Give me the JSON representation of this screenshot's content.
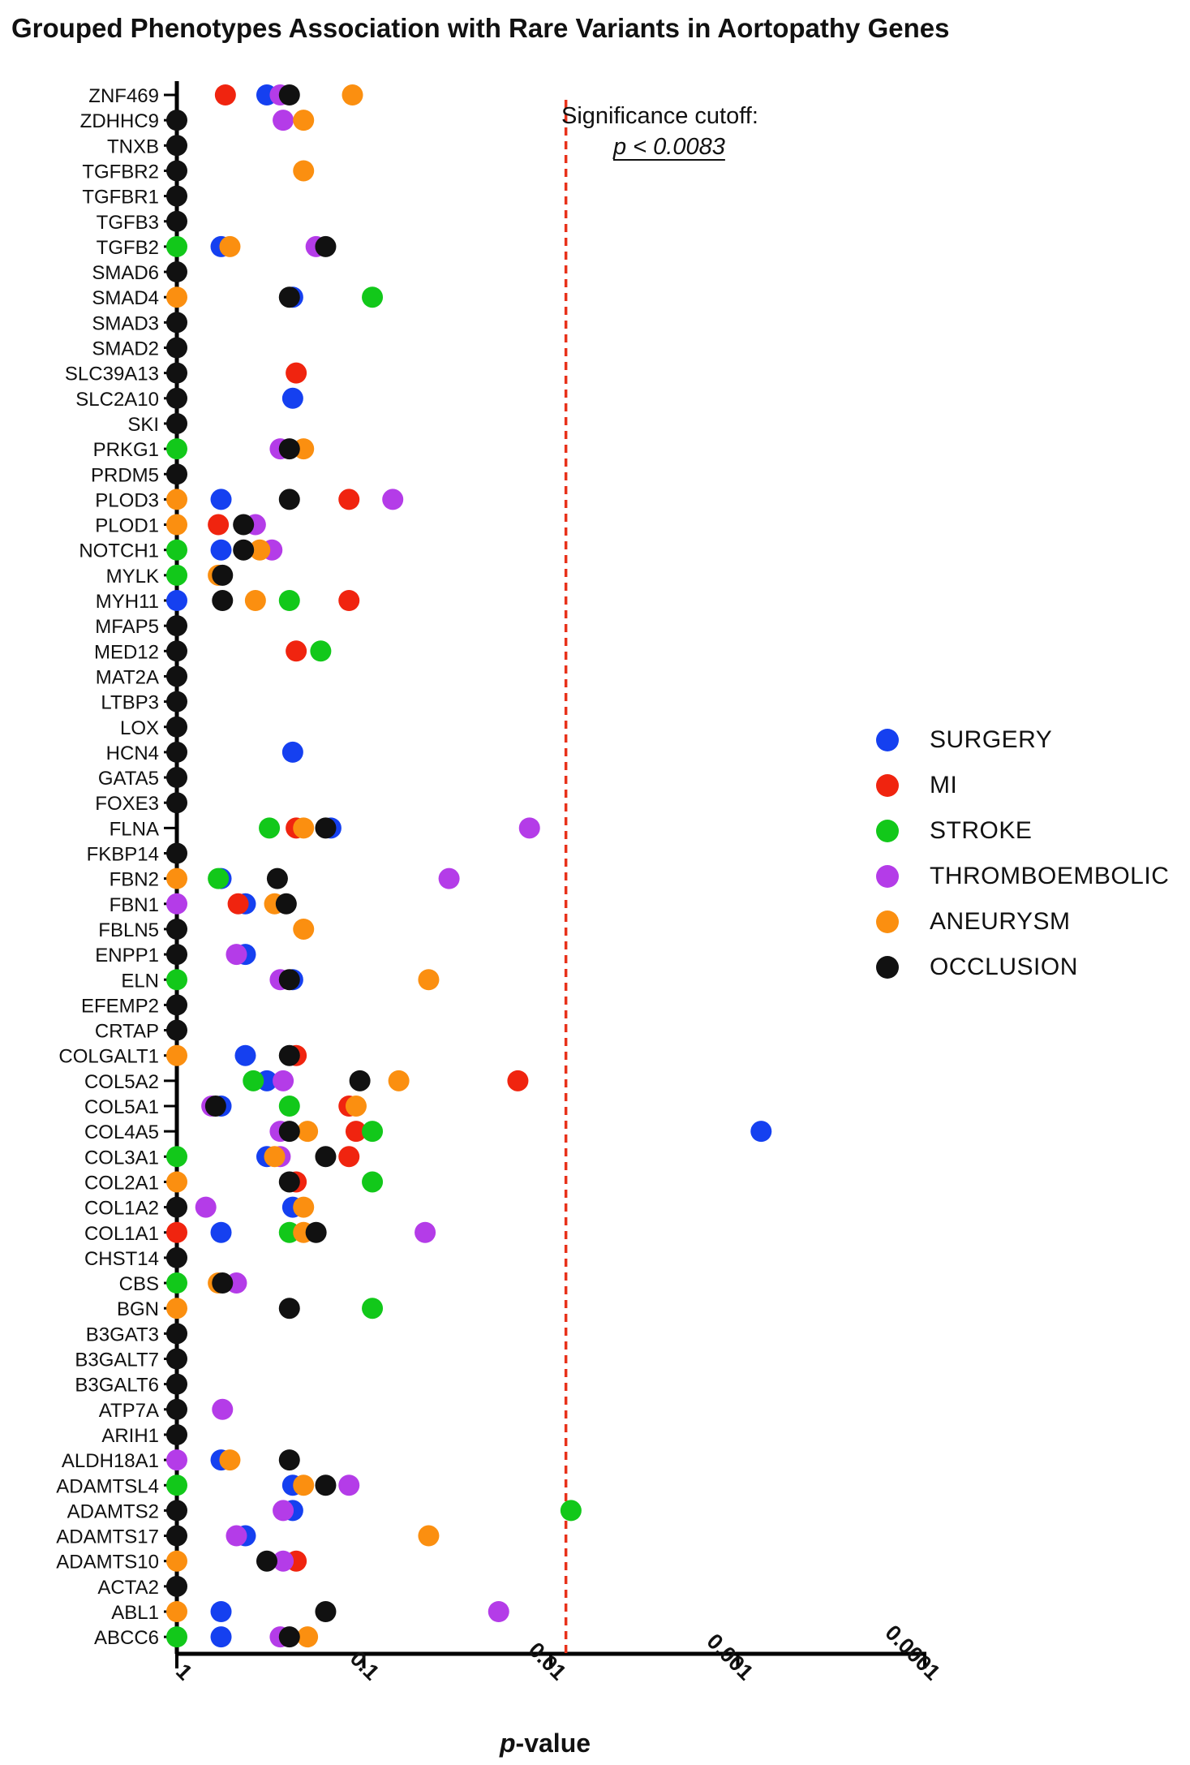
{
  "chart_data": {
    "type": "scatter",
    "title": "Grouped Phenotypes Association with Rare Variants in Aortopathy Genes",
    "xlabel_italic": "p",
    "xlabel_rest": "-value",
    "xscale": "log-reversed",
    "xlim": [
      1,
      0.0001
    ],
    "xticks": [
      "1",
      "0.1",
      "0.01",
      "0.001",
      "0.0001"
    ],
    "grid": false,
    "legend_position": "right",
    "cutoff": {
      "value": 0.0083,
      "label": "Significance cutoff:",
      "value_label": "p < 0.0083",
      "color": "#e8311a"
    },
    "genes": [
      "ZNF469",
      "ZDHHC9",
      "TNXB",
      "TGFBR2",
      "TGFBR1",
      "TGFB3",
      "TGFB2",
      "SMAD6",
      "SMAD4",
      "SMAD3",
      "SMAD2",
      "SLC39A13",
      "SLC2A10",
      "SKI",
      "PRKG1",
      "PRDM5",
      "PLOD3",
      "PLOD1",
      "NOTCH1",
      "MYLK",
      "MYH11",
      "MFAP5",
      "MED12",
      "MAT2A",
      "LTBP3",
      "LOX",
      "HCN4",
      "GATA5",
      "FOXE3",
      "FLNA",
      "FKBP14",
      "FBN2",
      "FBN1",
      "FBLN5",
      "ENPP1",
      "ELN",
      "EFEMP2",
      "CRTAP",
      "COLGALT1",
      "COL5A2",
      "COL5A1",
      "COL4A5",
      "COL3A1",
      "COL2A1",
      "COL1A2",
      "COL1A1",
      "CHST14",
      "CBS",
      "BGN",
      "B3GAT3",
      "B3GALT7",
      "B3GALT6",
      "ATP7A",
      "ARIH1",
      "ALDH18A1",
      "ADAMTSL4",
      "ADAMTS2",
      "ADAMTS17",
      "ADAMTS10",
      "ACTA2",
      "ABL1",
      "ABCC6"
    ],
    "series": [
      {
        "name": "SURGERY",
        "color": "#1540f0",
        "points": [
          [
            "ZNF469",
            0.33
          ],
          [
            "TGFB2",
            0.58
          ],
          [
            "SMAD4",
            0.24
          ],
          [
            "SLC2A10",
            0.24
          ],
          [
            "PLOD3",
            0.58
          ],
          [
            "NOTCH1",
            0.58
          ],
          [
            "MYH11",
            1
          ],
          [
            "HCN4",
            0.24
          ],
          [
            "FLNA",
            0.15
          ],
          [
            "FBN2",
            0.58
          ],
          [
            "FBN1",
            0.43
          ],
          [
            "ENPP1",
            0.43
          ],
          [
            "ELN",
            0.24
          ],
          [
            "COLGALT1",
            0.43
          ],
          [
            "COL5A2",
            0.33
          ],
          [
            "COL5A1",
            0.58
          ],
          [
            "COL4A5",
            0.00075
          ],
          [
            "COL3A1",
            0.33
          ],
          [
            "COL1A2",
            0.24
          ],
          [
            "COL1A1",
            0.58
          ],
          [
            "ALDH18A1",
            0.58
          ],
          [
            "ADAMTSL4",
            0.24
          ],
          [
            "ADAMTS2",
            0.24
          ],
          [
            "ADAMTS17",
            0.43
          ],
          [
            "ABL1",
            0.58
          ],
          [
            "ABCC6",
            0.58
          ]
        ]
      },
      {
        "name": "MI",
        "color": "#f0240f",
        "points": [
          [
            "ZNF469",
            0.55
          ],
          [
            "SLC39A13",
            0.23
          ],
          [
            "PLOD3",
            0.12
          ],
          [
            "PLOD1",
            0.6
          ],
          [
            "MYH11",
            0.12
          ],
          [
            "MED12",
            0.23
          ],
          [
            "FLNA",
            0.23
          ],
          [
            "FBN1",
            0.47
          ],
          [
            "COLGALT1",
            0.23
          ],
          [
            "COL5A2",
            0.015
          ],
          [
            "COL5A1",
            0.12
          ],
          [
            "COL4A5",
            0.11
          ],
          [
            "COL3A1",
            0.12
          ],
          [
            "COL2A1",
            0.23
          ],
          [
            "COL1A1",
            1
          ],
          [
            "ADAMTS10",
            0.23
          ]
        ]
      },
      {
        "name": "STROKE",
        "color": "#12c81a",
        "points": [
          [
            "TGFB2",
            1
          ],
          [
            "SMAD4",
            0.09
          ],
          [
            "PRKG1",
            1
          ],
          [
            "NOTCH1",
            1
          ],
          [
            "MYLK",
            1
          ],
          [
            "MYH11",
            0.25
          ],
          [
            "MED12",
            0.17
          ],
          [
            "FLNA",
            0.32
          ],
          [
            "FBN2",
            0.6
          ],
          [
            "ELN",
            1
          ],
          [
            "COL5A2",
            0.39
          ],
          [
            "COL5A1",
            0.25
          ],
          [
            "COL4A5",
            0.09
          ],
          [
            "COL3A1",
            1
          ],
          [
            "COL2A1",
            0.09
          ],
          [
            "COL1A1",
            0.25
          ],
          [
            "CBS",
            1
          ],
          [
            "BGN",
            0.09
          ],
          [
            "ADAMTSL4",
            1
          ],
          [
            "ADAMTS2",
            0.0078
          ],
          [
            "ABCC6",
            1
          ]
        ]
      },
      {
        "name": "THROMBOEMBOLIC",
        "color": "#b43ce8",
        "points": [
          [
            "ZNF469",
            0.28
          ],
          [
            "ZDHHC9",
            0.27
          ],
          [
            "TGFB2",
            0.18
          ],
          [
            "PRKG1",
            0.28
          ],
          [
            "PLOD3",
            0.07
          ],
          [
            "PLOD1",
            0.38
          ],
          [
            "NOTCH1",
            0.31
          ],
          [
            "FLNA",
            0.013
          ],
          [
            "FBN2",
            0.035
          ],
          [
            "FBN1",
            1
          ],
          [
            "ENPP1",
            0.48
          ],
          [
            "ELN",
            0.28
          ],
          [
            "COL5A2",
            0.27
          ],
          [
            "COL5A1",
            0.65
          ],
          [
            "COL4A5",
            0.28
          ],
          [
            "COL3A1",
            0.28
          ],
          [
            "COL1A2",
            0.7
          ],
          [
            "COL1A1",
            0.047
          ],
          [
            "CBS",
            0.48
          ],
          [
            "ATP7A",
            0.57
          ],
          [
            "ALDH18A1",
            1
          ],
          [
            "ADAMTSL4",
            0.12
          ],
          [
            "ADAMTS2",
            0.27
          ],
          [
            "ADAMTS17",
            0.48
          ],
          [
            "ADAMTS10",
            0.27
          ],
          [
            "ABL1",
            0.019
          ],
          [
            "ABCC6",
            0.28
          ]
        ]
      },
      {
        "name": "ANEURYSM",
        "color": "#fb8f10",
        "points": [
          [
            "ZNF469",
            0.115
          ],
          [
            "ZDHHC9",
            0.21
          ],
          [
            "TGFBR2",
            0.21
          ],
          [
            "TGFB2",
            0.52
          ],
          [
            "SMAD4",
            1
          ],
          [
            "PRKG1",
            0.21
          ],
          [
            "PLOD3",
            1
          ],
          [
            "PLOD1",
            1
          ],
          [
            "NOTCH1",
            0.36
          ],
          [
            "MYLK",
            0.6
          ],
          [
            "MYH11",
            0.38
          ],
          [
            "FLNA",
            0.21
          ],
          [
            "FBN2",
            1
          ],
          [
            "FBN1",
            0.3
          ],
          [
            "FBLN5",
            0.21
          ],
          [
            "ELN",
            0.045
          ],
          [
            "COLGALT1",
            1
          ],
          [
            "COL5A2",
            0.065
          ],
          [
            "COL5A1",
            0.11
          ],
          [
            "COL4A5",
            0.2
          ],
          [
            "COL3A1",
            0.3
          ],
          [
            "COL2A1",
            1
          ],
          [
            "COL1A2",
            0.21
          ],
          [
            "COL1A1",
            0.21
          ],
          [
            "CBS",
            0.6
          ],
          [
            "BGN",
            1
          ],
          [
            "ALDH18A1",
            0.52
          ],
          [
            "ADAMTSL4",
            0.21
          ],
          [
            "ADAMTS17",
            0.045
          ],
          [
            "ADAMTS10",
            1
          ],
          [
            "ABL1",
            1
          ],
          [
            "ABCC6",
            0.2
          ]
        ]
      },
      {
        "name": "OCCLUSION",
        "color": "#111111",
        "points": [
          [
            "ZNF469",
            0.25
          ],
          [
            "ZDHHC9",
            1
          ],
          [
            "TNXB",
            1
          ],
          [
            "TGFBR2",
            1
          ],
          [
            "TGFBR1",
            1
          ],
          [
            "TGFB3",
            1
          ],
          [
            "TGFB2",
            0.16
          ],
          [
            "SMAD6",
            1
          ],
          [
            "SMAD4",
            0.25
          ],
          [
            "SMAD3",
            1
          ],
          [
            "SMAD2",
            1
          ],
          [
            "SLC39A13",
            1
          ],
          [
            "SLC2A10",
            1
          ],
          [
            "SKI",
            1
          ],
          [
            "PRKG1",
            0.25
          ],
          [
            "PRDM5",
            1
          ],
          [
            "PLOD3",
            0.25
          ],
          [
            "PLOD1",
            0.44
          ],
          [
            "NOTCH1",
            0.44
          ],
          [
            "MYLK",
            0.57
          ],
          [
            "MYH11",
            0.57
          ],
          [
            "MFAP5",
            1
          ],
          [
            "MED12",
            1
          ],
          [
            "MAT2A",
            1
          ],
          [
            "LTBP3",
            1
          ],
          [
            "LOX",
            1
          ],
          [
            "HCN4",
            1
          ],
          [
            "GATA5",
            1
          ],
          [
            "FOXE3",
            1
          ],
          [
            "FLNA",
            0.16
          ],
          [
            "FKBP14",
            1
          ],
          [
            "FBN2",
            0.29
          ],
          [
            "FBN1",
            0.26
          ],
          [
            "FBLN5",
            1
          ],
          [
            "ENPP1",
            1
          ],
          [
            "ELN",
            0.25
          ],
          [
            "EFEMP2",
            1
          ],
          [
            "CRTAP",
            1
          ],
          [
            "COLGALT1",
            0.25
          ],
          [
            "COL5A2",
            0.105
          ],
          [
            "COL5A1",
            0.62
          ],
          [
            "COL4A5",
            0.25
          ],
          [
            "COL3A1",
            0.16
          ],
          [
            "COL2A1",
            0.25
          ],
          [
            "COL1A2",
            1
          ],
          [
            "COL1A1",
            0.18
          ],
          [
            "CHST14",
            1
          ],
          [
            "CBS",
            0.57
          ],
          [
            "BGN",
            0.25
          ],
          [
            "B3GAT3",
            1
          ],
          [
            "B3GALT7",
            1
          ],
          [
            "B3GALT6",
            1
          ],
          [
            "ATP7A",
            1
          ],
          [
            "ARIH1",
            1
          ],
          [
            "ALDH18A1",
            0.25
          ],
          [
            "ADAMTSL4",
            0.16
          ],
          [
            "ADAMTS2",
            1
          ],
          [
            "ADAMTS17",
            1
          ],
          [
            "ADAMTS10",
            0.33
          ],
          [
            "ACTA2",
            1
          ],
          [
            "ABL1",
            0.16
          ],
          [
            "ABCC6",
            0.25
          ]
        ]
      }
    ]
  }
}
